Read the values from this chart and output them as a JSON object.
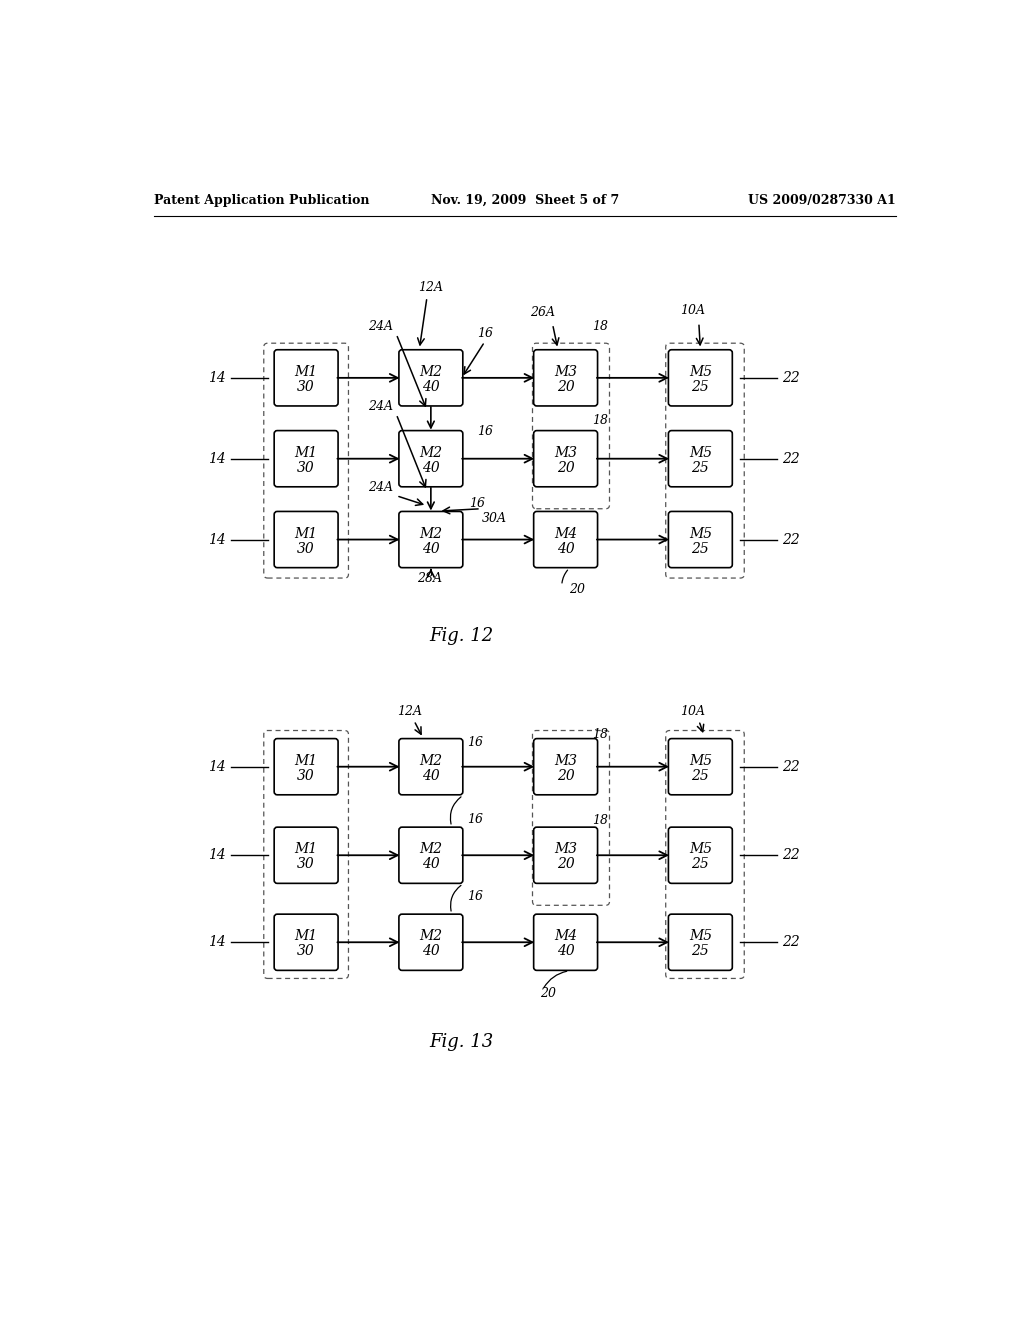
{
  "background_color": "#ffffff",
  "header_left": "Patent Application Publication",
  "header_center": "Nov. 19, 2009  Sheet 5 of 7",
  "header_right": "US 2009/0287330 A1",
  "fig12_label": "Fig. 12",
  "fig13_label": "Fig. 13"
}
